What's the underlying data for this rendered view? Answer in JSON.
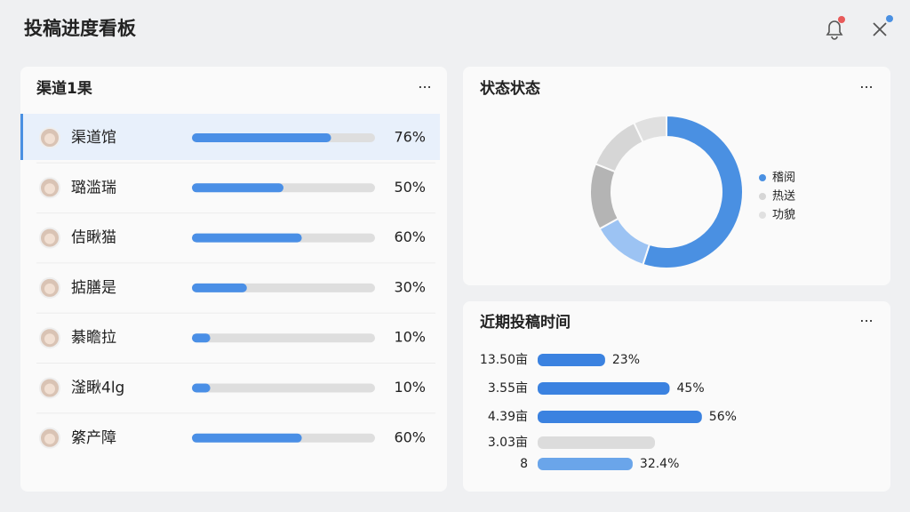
{
  "header": {
    "title": "投稿进度看板"
  },
  "channels": {
    "title": "渠道1果",
    "rows": [
      {
        "name": "渠道馆",
        "value": 76,
        "label": "76%"
      },
      {
        "name": "璐滥瑞",
        "value": 50,
        "label": "50%"
      },
      {
        "name": "佶瞅猫",
        "value": 60,
        "label": "60%"
      },
      {
        "name": "掂膳是",
        "value": 30,
        "label": "30%"
      },
      {
        "name": "綦瞻拉",
        "value": 10,
        "label": "10%"
      },
      {
        "name": "滏瞅4lg",
        "value": 10,
        "label": "10%"
      },
      {
        "name": "綮产障",
        "value": 60,
        "label": "60%"
      }
    ]
  },
  "chart_data": [
    {
      "type": "pie",
      "title": "状态状态",
      "donut": true,
      "categories": [
        "稽阅",
        null,
        null,
        "热送",
        "功貌"
      ],
      "values": [
        55,
        12,
        14,
        12,
        7
      ],
      "colors": [
        "#4a90e2",
        "#9cc3f3",
        "#b4b4b4",
        "#d6d6d6",
        "#e0e0e0"
      ]
    },
    {
      "type": "bar",
      "orientation": "horizontal",
      "title": "近期投稿时间",
      "categories": [
        "13.50亩",
        "3.55亩",
        "4.39亩",
        "3.03亩",
        "8"
      ],
      "values": [
        23,
        45,
        56,
        40,
        32.4
      ],
      "value_labels": [
        "23%",
        "45%",
        "56%",
        null,
        "32.4%"
      ],
      "colors": [
        "#3b82e0",
        "#3b82e0",
        "#3b82e0",
        "#dcdcdc",
        "#6aa5ea"
      ],
      "xlim": [
        0,
        100
      ]
    }
  ]
}
